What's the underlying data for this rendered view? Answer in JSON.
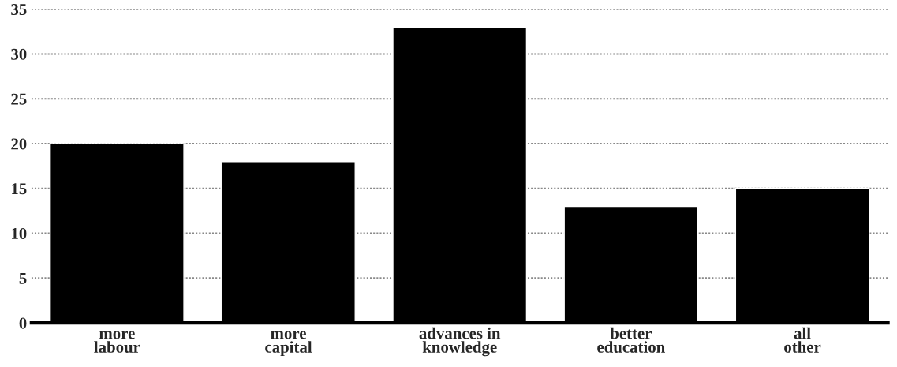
{
  "chart_data": {
    "type": "bar",
    "categories": [
      "more\nlabour",
      "more\ncapital",
      "advances in\nknowledge",
      "better\neducation",
      "all\nother"
    ],
    "values": [
      20,
      18,
      33,
      13,
      15
    ],
    "color": "#000000",
    "ylim": [
      0,
      35
    ],
    "yticks": [
      0,
      5,
      10,
      15,
      20,
      25,
      30,
      35
    ],
    "grid": "y"
  }
}
